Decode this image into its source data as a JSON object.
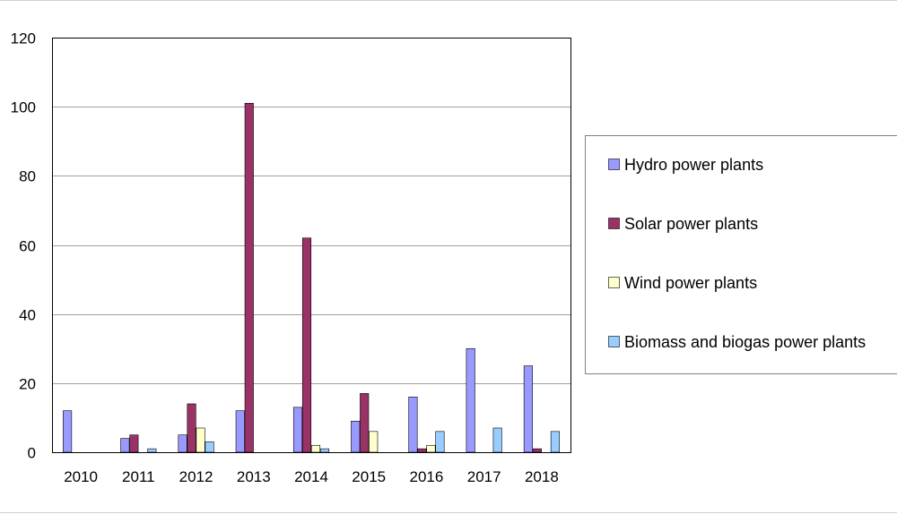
{
  "chart_data": {
    "type": "bar",
    "title": "",
    "xlabel": "",
    "ylabel": "",
    "categories": [
      "2010",
      "2011",
      "2012",
      "2013",
      "2014",
      "2015",
      "2016",
      "2017",
      "2018"
    ],
    "ylim": [
      0,
      120
    ],
    "yticks": [
      "0",
      "20",
      "40",
      "60",
      "80",
      "100",
      "120"
    ],
    "grid": true,
    "legend_position": "right",
    "series": [
      {
        "name": "Hydro power plants",
        "color": "#9999ff",
        "values": [
          12,
          4,
          5,
          12,
          13,
          9,
          16,
          30,
          25
        ]
      },
      {
        "name": "Solar power plants",
        "color": "#993366",
        "values": [
          0,
          5,
          14,
          101,
          62,
          17,
          1,
          0,
          1
        ]
      },
      {
        "name": "Wind power plants",
        "color": "#ffffcc",
        "values": [
          0,
          0,
          7,
          0,
          2,
          6,
          2,
          0,
          0
        ]
      },
      {
        "name": "Biomass and biogas power plants",
        "color": "#99ccff",
        "values": [
          0,
          1,
          3,
          0,
          1,
          0,
          6,
          7,
          6
        ]
      }
    ]
  }
}
